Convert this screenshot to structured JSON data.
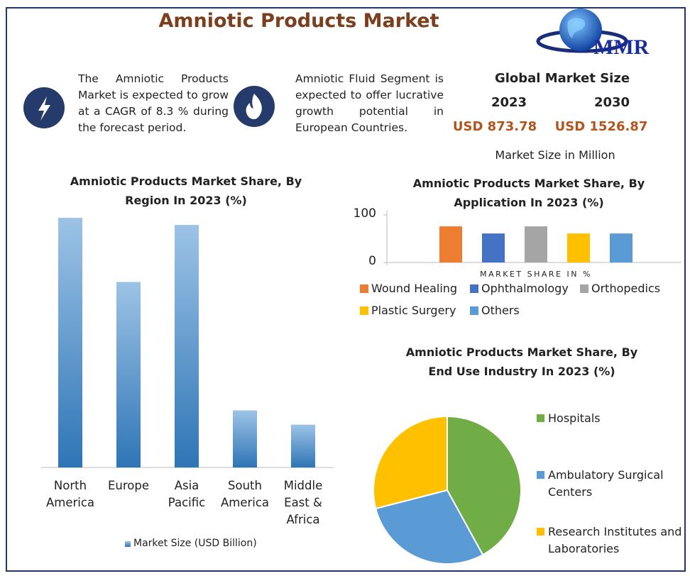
{
  "title": "Amniotic Products Market",
  "logo": "MMR",
  "highlights": [
    "The Amniotic Products Market is expected to grow at a CAGR of 8.3 % during the forecast period.",
    "Amniotic Fluid Segment is expected to offer lucrative growth potential in European Countries."
  ],
  "market_size": {
    "title": "Global Market Size",
    "items": [
      {
        "year": "2023",
        "value": "USD 873.78"
      },
      {
        "year": "2030",
        "value": "USD 1526.87"
      }
    ],
    "note": "Market Size in Million"
  },
  "chart_data": [
    {
      "type": "bar",
      "title": "Amniotic Products Market Share, By Region In 2023 (%)",
      "categories": [
        "North America",
        "Europe",
        "Asia Pacific",
        "South America",
        "Middle East & Africa"
      ],
      "values": [
        35,
        26,
        34,
        8,
        6
      ],
      "ylim": [
        0,
        36
      ],
      "color": "#5b9bd5",
      "legend": "Market Size (USD Billion)"
    },
    {
      "type": "bar",
      "title": "Amniotic Products Market Share, By Application In 2023 (%)",
      "categories": [
        "Wound Healing",
        "Ophthalmology",
        "Orthopedics",
        "Plastic Surgery",
        "Others"
      ],
      "values": [
        76,
        61,
        76,
        61,
        61
      ],
      "colors": [
        "#ed7d31",
        "#4472c4",
        "#a5a5a5",
        "#ffc000",
        "#5b9bd5"
      ],
      "ylim": [
        0,
        100
      ],
      "yticks": [
        0,
        100
      ],
      "xlabel": "MARKET SHARE IN %"
    },
    {
      "type": "pie",
      "title": "Amniotic Products Market Share, By End Use Industry In 2023 (%)",
      "categories": [
        "Hospitals",
        "Ambulatory Surgical Centers",
        "Research Institutes and Laboratories"
      ],
      "values": [
        42,
        29,
        29
      ],
      "colors": [
        "#70ad47",
        "#5b9bd5",
        "#ffc000"
      ]
    }
  ]
}
